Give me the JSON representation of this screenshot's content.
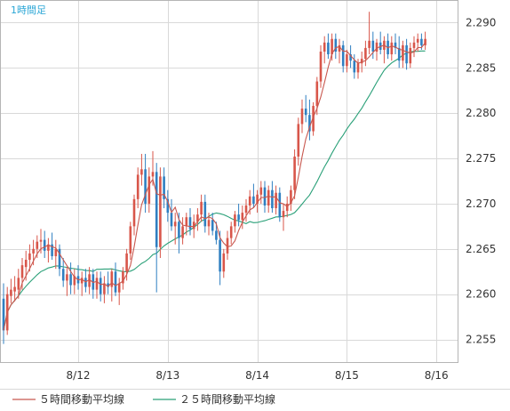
{
  "timeframe_label": "1時間足",
  "colors": {
    "candle_up": "#d8564a",
    "candle_down": "#2f7fc1",
    "ma5": "#c8584f",
    "ma25": "#2aa078",
    "grid": "#d9d9d9",
    "frame": "#b5b5b5",
    "timeframe": "#2aa6d6"
  },
  "chart_data": {
    "type": "candlestick",
    "title": "",
    "xlabel": "",
    "ylabel": "",
    "ylim": [
      2.2525,
      2.2925
    ],
    "y_ticks": [
      "2.255",
      "2.260",
      "2.265",
      "2.270",
      "2.275",
      "2.280",
      "2.285",
      "2.290"
    ],
    "x_ticks": [
      {
        "label": "8/12",
        "index": 20
      },
      {
        "label": "8/13",
        "index": 44
      },
      {
        "label": "8/14",
        "index": 68
      },
      {
        "label": "8/15",
        "index": 92
      },
      {
        "label": "8/16",
        "index": 116
      }
    ],
    "grid": true,
    "legend_position": "bottom",
    "ohlc": [
      [
        2.2595,
        2.2612,
        2.2545,
        2.256
      ],
      [
        2.256,
        2.2608,
        2.2555,
        2.26
      ],
      [
        2.2598,
        2.2617,
        2.259,
        2.2605
      ],
      [
        2.2603,
        2.262,
        2.2592,
        2.2608
      ],
      [
        2.2605,
        2.2628,
        2.2595,
        2.2618
      ],
      [
        2.2618,
        2.264,
        2.2605,
        2.2632
      ],
      [
        2.263,
        2.2648,
        2.2615,
        2.2638
      ],
      [
        2.2638,
        2.2655,
        2.2625,
        2.2645
      ],
      [
        2.2645,
        2.266,
        2.2632,
        2.265
      ],
      [
        2.265,
        2.2665,
        2.264,
        2.2658
      ],
      [
        2.2658,
        2.2672,
        2.2645,
        2.266
      ],
      [
        2.266,
        2.267,
        2.264,
        2.2648
      ],
      [
        2.2648,
        2.2662,
        2.2635,
        2.2655
      ],
      [
        2.2655,
        2.2668,
        2.2638,
        2.2642
      ],
      [
        2.2642,
        2.266,
        2.2628,
        2.265
      ],
      [
        2.265,
        2.2655,
        2.262,
        2.2628
      ],
      [
        2.2628,
        2.264,
        2.2608,
        2.2615
      ],
      [
        2.2615,
        2.263,
        2.2598,
        2.2622
      ],
      [
        2.2622,
        2.2635,
        2.26,
        2.261
      ],
      [
        2.261,
        2.2628,
        2.26,
        2.262
      ],
      [
        2.262,
        2.2632,
        2.2605,
        2.2612
      ],
      [
        2.2612,
        2.2625,
        2.2598,
        2.2618
      ],
      [
        2.2618,
        2.2628,
        2.2602,
        2.2608
      ],
      [
        2.2608,
        2.263,
        2.26,
        2.2622
      ],
      [
        2.2622,
        2.2628,
        2.2595,
        2.2605
      ],
      [
        2.2605,
        2.2625,
        2.2595,
        2.2618
      ],
      [
        2.2618,
        2.2625,
        2.2592,
        2.26
      ],
      [
        2.26,
        2.262,
        2.259,
        2.2612
      ],
      [
        2.2612,
        2.2625,
        2.26,
        2.2608
      ],
      [
        2.2608,
        2.2628,
        2.2592,
        2.2625
      ],
      [
        2.2625,
        2.2635,
        2.2598,
        2.2602
      ],
      [
        2.2602,
        2.2618,
        2.2588,
        2.2612
      ],
      [
        2.2612,
        2.263,
        2.2605,
        2.2625
      ],
      [
        2.2625,
        2.265,
        2.2615,
        2.2645
      ],
      [
        2.2645,
        2.268,
        2.2638,
        2.2675
      ],
      [
        2.2675,
        2.271,
        2.2665,
        2.2705
      ],
      [
        2.2705,
        2.274,
        2.2695,
        2.2732
      ],
      [
        2.2732,
        2.2755,
        2.272,
        2.2738
      ],
      [
        2.2738,
        2.2755,
        2.269,
        2.27
      ],
      [
        2.27,
        2.274,
        2.269,
        2.273
      ],
      [
        2.273,
        2.2758,
        2.272,
        2.2735
      ],
      [
        2.2735,
        2.2745,
        2.2602,
        2.2652
      ],
      [
        2.2652,
        2.274,
        2.264,
        2.273
      ],
      [
        2.273,
        2.274,
        2.2695,
        2.2705
      ],
      [
        2.2705,
        2.2715,
        2.268,
        2.269
      ],
      [
        2.269,
        2.2705,
        2.267,
        2.2675
      ],
      [
        2.2675,
        2.269,
        2.2655,
        2.268
      ],
      [
        2.268,
        2.269,
        2.2645,
        2.2662
      ],
      [
        2.2662,
        2.2685,
        2.2655,
        2.2675
      ],
      [
        2.2675,
        2.269,
        2.2665,
        2.2685
      ],
      [
        2.2685,
        2.2695,
        2.2665,
        2.2672
      ],
      [
        2.2672,
        2.2688,
        2.2662,
        2.268
      ],
      [
        2.268,
        2.2695,
        2.267,
        2.2688
      ],
      [
        2.2688,
        2.271,
        2.268,
        2.2702
      ],
      [
        2.2702,
        2.271,
        2.2668,
        2.2675
      ],
      [
        2.2675,
        2.269,
        2.2665,
        2.2682
      ],
      [
        2.2682,
        2.269,
        2.2665,
        2.267
      ],
      [
        2.267,
        2.268,
        2.2655,
        2.266
      ],
      [
        2.266,
        2.267,
        2.261,
        2.2625
      ],
      [
        2.2625,
        2.265,
        2.2618,
        2.2645
      ],
      [
        2.2645,
        2.267,
        2.2638,
        2.2662
      ],
      [
        2.2662,
        2.268,
        2.2655,
        2.2675
      ],
      [
        2.2675,
        2.2692,
        2.2668,
        2.2688
      ],
      [
        2.2688,
        2.27,
        2.2675,
        2.2682
      ],
      [
        2.2682,
        2.2698,
        2.2672,
        2.269
      ],
      [
        2.269,
        2.2705,
        2.268,
        2.2698
      ],
      [
        2.2698,
        2.2715,
        2.2688,
        2.2708
      ],
      [
        2.2708,
        2.2722,
        2.2695,
        2.27
      ],
      [
        2.27,
        2.2715,
        2.269,
        2.271
      ],
      [
        2.271,
        2.2725,
        2.27,
        2.2718
      ],
      [
        2.2718,
        2.2725,
        2.269,
        2.2698
      ],
      [
        2.2698,
        2.272,
        2.269,
        2.2715
      ],
      [
        2.2715,
        2.2725,
        2.269,
        2.2695
      ],
      [
        2.2695,
        2.272,
        2.2688,
        2.2712
      ],
      [
        2.2712,
        2.2718,
        2.268,
        2.2685
      ],
      [
        2.2685,
        2.27,
        2.267,
        2.2692
      ],
      [
        2.2692,
        2.2708,
        2.2685,
        2.27
      ],
      [
        2.27,
        2.272,
        2.2692,
        2.2715
      ],
      [
        2.2715,
        2.276,
        2.2705,
        2.2752
      ],
      [
        2.2752,
        2.2795,
        2.2742,
        2.2788
      ],
      [
        2.2788,
        2.2815,
        2.2778,
        2.2805
      ],
      [
        2.2805,
        2.282,
        2.279,
        2.2798
      ],
      [
        2.2798,
        2.2815,
        2.277,
        2.278
      ],
      [
        2.278,
        2.2812,
        2.2775,
        2.2808
      ],
      [
        2.2808,
        2.284,
        2.2798,
        2.2835
      ],
      [
        2.2835,
        2.2875,
        2.2828,
        2.2868
      ],
      [
        2.2868,
        2.2885,
        2.2855,
        2.2878
      ],
      [
        2.2878,
        2.2888,
        2.286,
        2.2865
      ],
      [
        2.2865,
        2.2888,
        2.2858,
        2.2882
      ],
      [
        2.2882,
        2.2888,
        2.286,
        2.2868
      ],
      [
        2.2868,
        2.2882,
        2.2855,
        2.2875
      ],
      [
        2.2875,
        2.288,
        2.2845,
        2.2852
      ],
      [
        2.2852,
        2.287,
        2.2845,
        2.2865
      ],
      [
        2.2865,
        2.2875,
        2.285,
        2.2858
      ],
      [
        2.2858,
        2.2865,
        2.2838,
        2.2845
      ],
      [
        2.2845,
        2.286,
        2.2838,
        2.2855
      ],
      [
        2.2855,
        2.2868,
        2.2845,
        2.286
      ],
      [
        2.286,
        2.288,
        2.2852,
        2.2872
      ],
      [
        2.2872,
        2.2912,
        2.2865,
        2.288
      ],
      [
        2.288,
        2.289,
        2.286,
        2.2868
      ],
      [
        2.2868,
        2.2882,
        2.2858,
        2.2878
      ],
      [
        2.2878,
        2.289,
        2.2865,
        2.287
      ],
      [
        2.287,
        2.2885,
        2.2855,
        2.288
      ],
      [
        2.288,
        2.2888,
        2.286,
        2.2865
      ],
      [
        2.2865,
        2.2885,
        2.2858,
        2.2878
      ],
      [
        2.2878,
        2.2888,
        2.2865,
        2.2872
      ],
      [
        2.2872,
        2.2885,
        2.285,
        2.2858
      ],
      [
        2.2858,
        2.288,
        2.285,
        2.2875
      ],
      [
        2.2875,
        2.2882,
        2.2848,
        2.2855
      ],
      [
        2.2855,
        2.2878,
        2.285,
        2.2872
      ],
      [
        2.2872,
        2.2885,
        2.2862,
        2.2878
      ],
      [
        2.2878,
        2.2888,
        2.2868,
        2.2882
      ],
      [
        2.2882,
        2.2888,
        2.287,
        2.2875
      ],
      [
        2.2875,
        2.289,
        2.287,
        2.2882
      ]
    ],
    "series": [
      {
        "name": "５時間移動平均線",
        "kind": "sma",
        "period": 5
      },
      {
        "name": "２５時間移動平均線",
        "kind": "sma",
        "period": 25
      }
    ]
  }
}
